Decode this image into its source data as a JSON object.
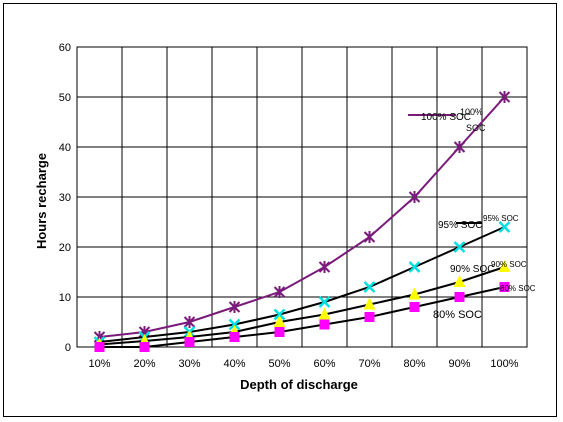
{
  "chart_data": {
    "type": "line",
    "title": "",
    "xlabel": "Depth of discharge",
    "ylabel": "Hours recharge",
    "categories": [
      "10%",
      "20%",
      "30%",
      "40%",
      "50%",
      "60%",
      "70%",
      "80%",
      "90%",
      "100%"
    ],
    "ylim": [
      0,
      60
    ],
    "yticks": [
      0,
      10,
      20,
      30,
      40,
      50,
      60
    ],
    "grid": true,
    "legend": "none",
    "series": [
      {
        "name": "100% SOC",
        "marker": "asterisk",
        "color": "#7a1a7a",
        "values": [
          2,
          3,
          5,
          8,
          11,
          16,
          22,
          30,
          40,
          50
        ]
      },
      {
        "name": "95% SOC",
        "marker": "x",
        "color": "#00e0e0",
        "values": [
          1,
          2,
          3,
          4.5,
          6.5,
          9,
          12,
          16,
          20,
          24
        ]
      },
      {
        "name": "90% SOC",
        "marker": "triangle",
        "color": "#ffff00",
        "values": [
          0.5,
          1.2,
          2,
          3,
          5,
          6.5,
          8.5,
          10.5,
          13,
          16
        ]
      },
      {
        "name": "80% SOC",
        "marker": "square",
        "color": "#ff00ff",
        "values": [
          0,
          0,
          1,
          2,
          3,
          4.5,
          6,
          8,
          10,
          12
        ]
      }
    ],
    "line_color": "#000000",
    "annotations": [
      {
        "text": "100% SOC"
      },
      {
        "text": "100%"
      },
      {
        "text": "SOC"
      },
      {
        "text": "95% SOC"
      },
      {
        "text": "95% SOC"
      },
      {
        "text": "90% SOC"
      },
      {
        "text": "90% SOC"
      },
      {
        "text": "80% SOC"
      },
      {
        "text": "80% SOC"
      }
    ]
  }
}
